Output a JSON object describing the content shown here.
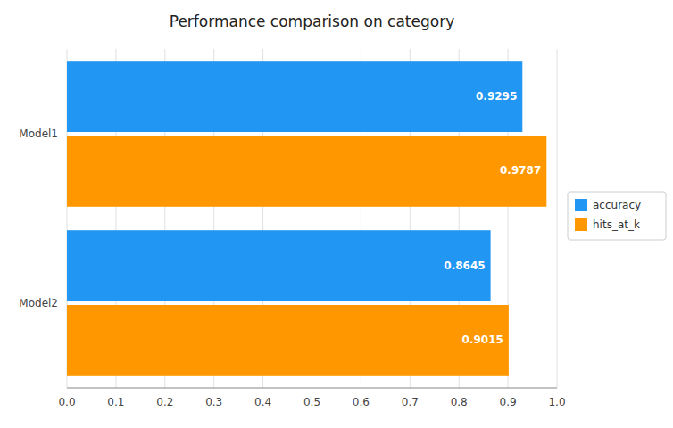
{
  "chart_data": {
    "type": "bar",
    "orientation": "horizontal",
    "title": "Performance comparison on category",
    "categories": [
      "Model1",
      "Model2"
    ],
    "series": [
      {
        "name": "accuracy",
        "color": "#2196F3",
        "values": [
          0.9295,
          0.8645
        ]
      },
      {
        "name": "hits_at_k",
        "color": "#FF9800",
        "values": [
          0.9787,
          0.9015
        ]
      }
    ],
    "xlim": [
      0.0,
      1.0
    ],
    "xticks": [
      {
        "value": 0.0,
        "label": "0.0"
      },
      0.1,
      0.2,
      0.3,
      0.4,
      0.5,
      0.6,
      0.7,
      0.8,
      0.9,
      {
        "value": 1.0,
        "label": "1.0"
      }
    ],
    "grid": true,
    "legend": "right",
    "data_labels": true
  }
}
